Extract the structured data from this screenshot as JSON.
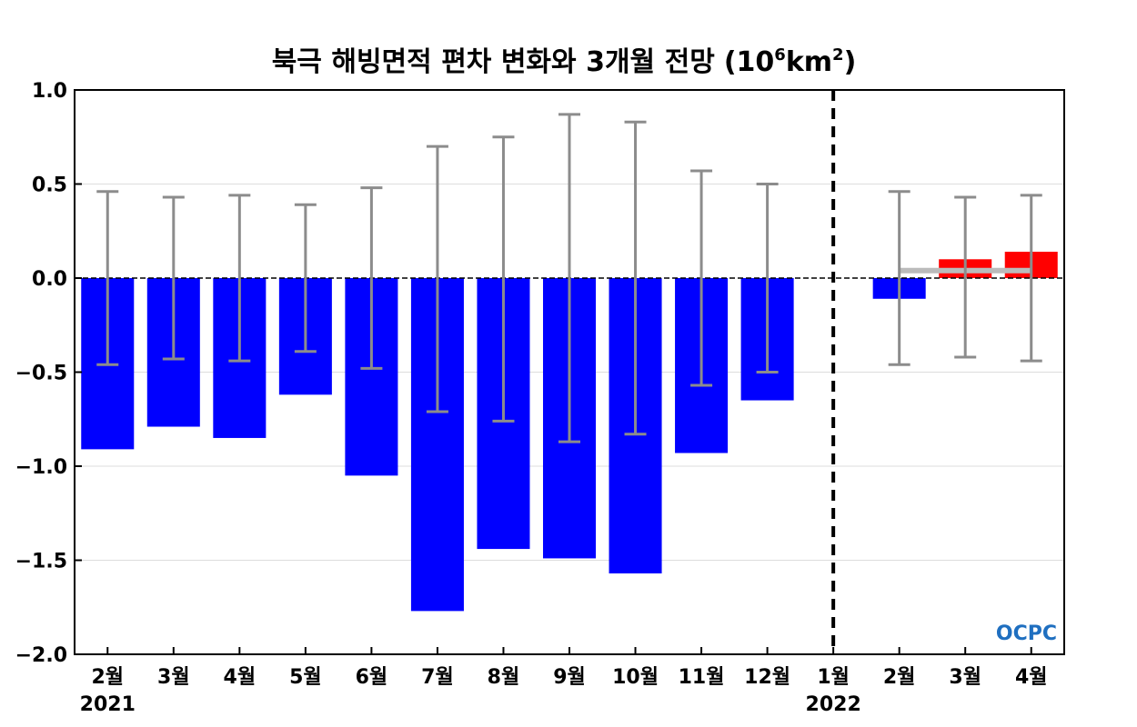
{
  "chart_data": {
    "type": "bar",
    "title": "북극 해빙면적 편차 변화와 3개월 전망",
    "title_unit": "(10",
    "title_unit_exp": "6",
    "title_unit_km": "km",
    "title_unit_exp2": "2",
    "title_unit_close": ")",
    "categories": [
      "2월",
      "3월",
      "4월",
      "5월",
      "6월",
      "7월",
      "8월",
      "9월",
      "10월",
      "11월",
      "12월",
      "1월",
      "2월",
      "3월",
      "4월"
    ],
    "year_labels": [
      {
        "category_index": 0,
        "label": "2021"
      },
      {
        "category_index": 11,
        "label": "2022"
      }
    ],
    "ylim": [
      -2.0,
      1.0
    ],
    "yticks": [
      1.0,
      0.5,
      0.0,
      -0.5,
      -1.0,
      -1.5,
      -2.0
    ],
    "ytick_labels": [
      "1.0",
      "0.5",
      "0.0",
      "−0.5",
      "−1.0",
      "−1.5",
      "−2.0"
    ],
    "grid": true,
    "series": [
      {
        "values": [
          -0.91,
          -0.79,
          -0.85,
          -0.62,
          -1.05,
          -1.77,
          -1.44,
          -1.49,
          -1.57,
          -0.93,
          -0.65,
          null,
          -0.11,
          0.1,
          0.14
        ],
        "colors": [
          "#0000ff",
          "#0000ff",
          "#0000ff",
          "#0000ff",
          "#0000ff",
          "#0000ff",
          "#0000ff",
          "#0000ff",
          "#0000ff",
          "#0000ff",
          "#0000ff",
          "#0000ff",
          "#0000ff",
          "#ff0000",
          "#ff0000"
        ]
      }
    ],
    "error_bars": [
      {
        "low": -0.46,
        "high": 0.46
      },
      {
        "low": -0.43,
        "high": 0.43
      },
      {
        "low": -0.44,
        "high": 0.44
      },
      {
        "low": -0.39,
        "high": 0.39
      },
      {
        "low": -0.48,
        "high": 0.48
      },
      {
        "low": -0.71,
        "high": 0.7
      },
      {
        "low": -0.76,
        "high": 0.75
      },
      {
        "low": -0.87,
        "high": 0.87
      },
      {
        "low": -0.83,
        "high": 0.83
      },
      {
        "low": -0.57,
        "high": 0.57
      },
      {
        "low": -0.5,
        "high": 0.5
      },
      null,
      {
        "low": -0.46,
        "high": 0.46
      },
      {
        "low": -0.42,
        "high": 0.43
      },
      {
        "low": -0.44,
        "high": 0.44
      }
    ],
    "forecast_line": {
      "from_index": 12,
      "to_index": 14,
      "value": 0.04,
      "color": "#bbbbbb"
    },
    "reference_line": {
      "value": 0.0,
      "style": "dashed",
      "color": "#000000"
    },
    "divider_after_index": 11,
    "colors": {
      "observed": "#0000ff",
      "positive_forecast": "#ff0000",
      "error_bar": "#8c8c8c",
      "grid": "#dddddd"
    },
    "logo": "OCPC"
  }
}
